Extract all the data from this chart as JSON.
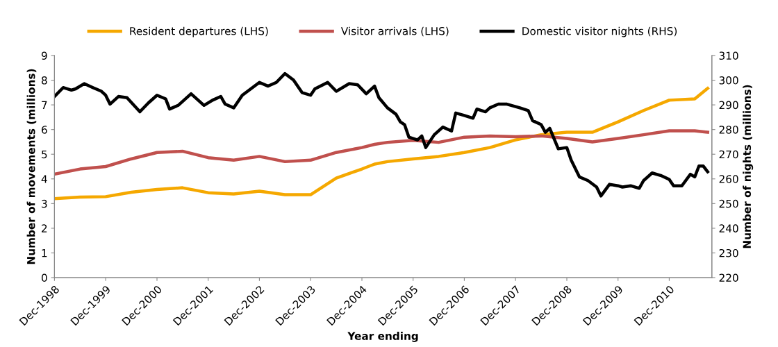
{
  "chart_data": {
    "type": "line",
    "xlabel": "Year ending",
    "ylabel": "Number of movements (millions)",
    "y2label": "Number of nights (millions)",
    "xlim": [
      "1998-12",
      "2011-10"
    ],
    "xticks": [
      {
        "value": "1998-12",
        "label": "Dec-1998"
      },
      {
        "value": "1999-12",
        "label": "Dec-1999"
      },
      {
        "value": "2000-12",
        "label": "Dec-2000"
      },
      {
        "value": "2001-12",
        "label": "Dec-2001"
      },
      {
        "value": "2002-12",
        "label": "Dec-2002"
      },
      {
        "value": "2003-12",
        "label": "Dec-2003"
      },
      {
        "value": "2004-12",
        "label": "Dec-2004"
      },
      {
        "value": "2005-12",
        "label": "Dec-2005"
      },
      {
        "value": "2006-12",
        "label": "Dec-2006"
      },
      {
        "value": "2007-12",
        "label": "Dec-2007"
      },
      {
        "value": "2008-12",
        "label": "Dec-2008"
      },
      {
        "value": "2009-12",
        "label": "Dec-2009"
      },
      {
        "value": "2010-12",
        "label": "Dec-2010"
      }
    ],
    "ylim": [
      0,
      9
    ],
    "yticks": [
      0,
      1,
      2,
      3,
      4,
      5,
      6,
      7,
      8,
      9
    ],
    "y2lim": [
      220,
      310
    ],
    "y2ticks": [
      220,
      230,
      240,
      250,
      260,
      270,
      280,
      290,
      300,
      310
    ],
    "grid": false,
    "legend": "top",
    "marker": "none",
    "line_style": "solid",
    "series": [
      {
        "name": "Resident departures (LHS)",
        "color": "#f5a800",
        "x": [
          "1998-12",
          "1999-06",
          "1999-12",
          "2000-06",
          "2000-12",
          "2001-06",
          "2001-12",
          "2002-06",
          "2002-12",
          "2003-06",
          "2003-12",
          "2004-06",
          "2004-12",
          "2005-03",
          "2005-06",
          "2005-12",
          "2006-06",
          "2006-12",
          "2007-06",
          "2007-12",
          "2008-06",
          "2008-12",
          "2009-06",
          "2009-12",
          "2010-06",
          "2010-12",
          "2011-06",
          "2011-09"
        ],
        "values": [
          3.2,
          3.26,
          3.28,
          3.46,
          3.57,
          3.64,
          3.44,
          3.39,
          3.5,
          3.36,
          3.36,
          4.03,
          4.4,
          4.6,
          4.7,
          4.81,
          4.91,
          5.07,
          5.27,
          5.58,
          5.79,
          5.89,
          5.89,
          6.31,
          6.77,
          7.19,
          7.24,
          7.67
        ]
      },
      {
        "name": "Visitor arrivals (LHS)",
        "color": "#c0504d",
        "x": [
          "1998-12",
          "1999-06",
          "1999-12",
          "2000-06",
          "2000-12",
          "2001-06",
          "2001-12",
          "2002-06",
          "2002-12",
          "2003-06",
          "2003-12",
          "2004-06",
          "2004-12",
          "2005-03",
          "2005-06",
          "2005-12",
          "2006-06",
          "2006-12",
          "2007-06",
          "2007-12",
          "2008-06",
          "2008-12",
          "2009-06",
          "2009-12",
          "2010-06",
          "2010-12",
          "2011-06",
          "2011-09"
        ],
        "values": [
          4.19,
          4.4,
          4.5,
          4.81,
          5.07,
          5.12,
          4.86,
          4.76,
          4.91,
          4.7,
          4.76,
          5.07,
          5.27,
          5.4,
          5.48,
          5.56,
          5.48,
          5.69,
          5.74,
          5.71,
          5.74,
          5.64,
          5.5,
          5.64,
          5.79,
          5.95,
          5.95,
          5.89
        ]
      },
      {
        "name": "Domestic visitor nights (RHS)",
        "color": "#000000",
        "axis": "y2",
        "x": [
          "1998-12",
          "1999-02",
          "1999-04",
          "1999-05",
          "1999-07",
          "1999-09",
          "1999-11",
          "1999-12",
          "2000-01",
          "2000-03",
          "2000-05",
          "2000-08",
          "2000-10",
          "2000-12",
          "2001-02",
          "2001-03",
          "2001-05",
          "2001-08",
          "2001-11",
          "2002-01",
          "2002-03",
          "2002-04",
          "2002-06",
          "2002-08",
          "2002-12",
          "2003-02",
          "2003-04",
          "2003-06",
          "2003-08",
          "2003-10",
          "2003-12",
          "2004-01",
          "2004-04",
          "2004-06",
          "2004-09",
          "2004-11",
          "2005-01",
          "2005-03",
          "2005-04",
          "2005-06",
          "2005-08",
          "2005-09",
          "2005-10",
          "2005-11",
          "2006-01",
          "2006-02",
          "2006-03",
          "2006-05",
          "2006-07",
          "2006-09",
          "2006-10",
          "2006-12",
          "2007-02",
          "2007-03",
          "2007-05",
          "2007-06",
          "2007-08",
          "2007-10",
          "2008-01",
          "2008-03",
          "2008-04",
          "2008-06",
          "2008-07",
          "2008-08",
          "2008-10",
          "2008-12",
          "2009-01",
          "2009-03",
          "2009-05",
          "2009-07",
          "2009-08",
          "2009-10",
          "2009-12",
          "2010-01",
          "2010-03",
          "2010-05",
          "2010-06",
          "2010-08",
          "2010-10",
          "2010-12",
          "2011-01",
          "2011-03",
          "2011-05",
          "2011-06",
          "2011-07",
          "2011-08",
          "2011-09"
        ],
        "values": [
          293.4,
          297.0,
          296.0,
          296.5,
          298.6,
          297.0,
          295.5,
          293.9,
          290.3,
          293.4,
          292.9,
          287.2,
          290.8,
          293.9,
          292.4,
          288.3,
          289.8,
          294.5,
          289.8,
          291.9,
          293.4,
          290.3,
          288.8,
          293.9,
          299.1,
          297.6,
          299.1,
          302.7,
          300.1,
          295.0,
          293.9,
          296.5,
          299.1,
          295.5,
          298.6,
          298.1,
          294.5,
          297.6,
          292.9,
          288.8,
          286.2,
          283.1,
          282.0,
          276.9,
          275.8,
          277.4,
          272.7,
          277.9,
          281.0,
          279.4,
          286.7,
          285.7,
          284.6,
          288.3,
          287.2,
          288.8,
          290.3,
          290.3,
          288.8,
          287.7,
          283.6,
          282.0,
          278.9,
          280.5,
          272.2,
          272.7,
          267.6,
          260.8,
          259.3,
          256.7,
          253.1,
          257.8,
          257.2,
          256.7,
          257.2,
          256.2,
          259.3,
          262.4,
          261.4,
          259.8,
          257.2,
          257.2,
          261.9,
          260.8,
          265.2,
          265.2,
          262.9
        ]
      }
    ]
  }
}
